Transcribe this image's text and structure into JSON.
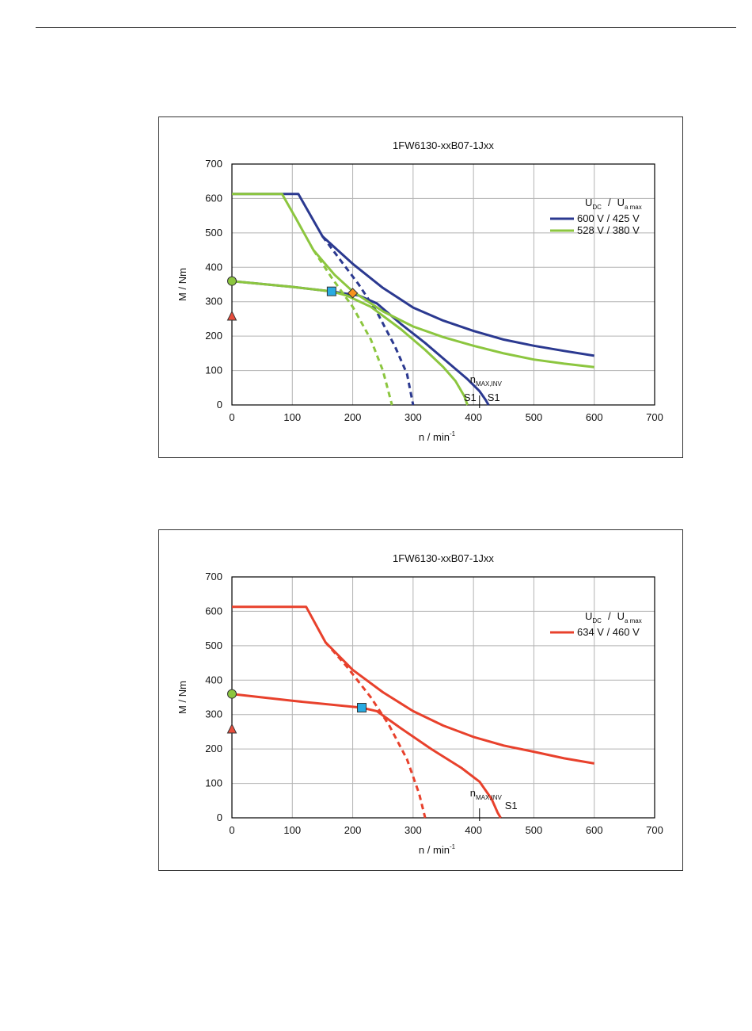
{
  "chart_data": [
    {
      "type": "line",
      "title": "1FW6130-xxB07-1Jxx",
      "xlabel": "n / min",
      "xlabel_sup": "-1",
      "ylabel": "M / Nm",
      "xlim": [
        0,
        700
      ],
      "ylim": [
        0,
        700
      ],
      "xticks": [
        "0",
        "100",
        "200",
        "300",
        "400",
        "500",
        "600",
        "700"
      ],
      "yticks": [
        "0",
        "100",
        "200",
        "300",
        "400",
        "500",
        "600",
        "700"
      ],
      "grid": true,
      "legend": {
        "placement": "right",
        "header_main1": "U",
        "header_sub1": "DC",
        "header_sep": "/",
        "header_main2": "U",
        "header_sub2": "a max",
        "entries": [
          "600 V / 425 V",
          "528 V / 380 V"
        ]
      },
      "colors": {
        "series1": "#2b3990",
        "series2": "#8cc63f"
      },
      "series": [
        {
          "name": "600 V / 425 V",
          "color": "#2b3990",
          "curves": [
            {
              "style": "solid",
              "points": [
                [
                  0,
                  613
                ],
                [
                  110,
                  613
                ],
                [
                  150,
                  490
                ],
                [
                  175,
                  450
                ],
                [
                  200,
                  410
                ],
                [
                  250,
                  340
                ],
                [
                  300,
                  283
                ],
                [
                  350,
                  245
                ],
                [
                  400,
                  215
                ],
                [
                  450,
                  190
                ],
                [
                  500,
                  172
                ],
                [
                  550,
                  157
                ],
                [
                  600,
                  143
                ]
              ]
            },
            {
              "style": "solid",
              "points": [
                [
                  0,
                  360
                ],
                [
                  100,
                  343
                ],
                [
                  165,
                  330
                ],
                [
                  190,
                  323
                ],
                [
                  210,
                  318
                ],
                [
                  240,
                  295
                ],
                [
                  280,
                  235
                ],
                [
                  320,
                  180
                ],
                [
                  360,
                  120
                ],
                [
                  390,
                  75
                ],
                [
                  410,
                  40
                ],
                [
                  420,
                  15
                ],
                [
                  425,
                  0
                ]
              ]
            },
            {
              "style": "dashed",
              "points": [
                [
                  150,
                  490
                ],
                [
                  180,
                  420
                ],
                [
                  210,
                  350
                ],
                [
                  240,
                  270
                ],
                [
                  270,
                  170
                ],
                [
                  290,
                  90
                ],
                [
                  300,
                  0
                ]
              ]
            }
          ]
        },
        {
          "name": "528 V / 380 V",
          "color": "#8cc63f",
          "curves": [
            {
              "style": "solid",
              "points": [
                [
                  0,
                  613
                ],
                [
                  83,
                  613
                ],
                [
                  105,
                  545
                ],
                [
                  135,
                  450
                ],
                [
                  170,
                  378
                ],
                [
                  200,
                  330
                ],
                [
                  250,
                  272
                ],
                [
                  300,
                  228
                ],
                [
                  350,
                  197
                ],
                [
                  400,
                  172
                ],
                [
                  450,
                  150
                ],
                [
                  500,
                  132
                ],
                [
                  550,
                  120
                ],
                [
                  600,
                  110
                ]
              ]
            },
            {
              "style": "solid",
              "points": [
                [
                  0,
                  360
                ],
                [
                  100,
                  343
                ],
                [
                  165,
                  330
                ],
                [
                  190,
                  318
                ],
                [
                  230,
                  285
                ],
                [
                  280,
                  220
                ],
                [
                  320,
                  160
                ],
                [
                  350,
                  110
                ],
                [
                  370,
                  70
                ],
                [
                  385,
                  25
                ],
                [
                  390,
                  0
                ]
              ]
            },
            {
              "style": "dashed",
              "points": [
                [
                  135,
                  450
                ],
                [
                  165,
                  370
                ],
                [
                  200,
                  285
                ],
                [
                  230,
                  190
                ],
                [
                  250,
                  100
                ],
                [
                  265,
                  0
                ]
              ]
            }
          ]
        }
      ],
      "markers": [
        {
          "shape": "circle",
          "color": "#8cc63f",
          "x": 0,
          "y": 360
        },
        {
          "shape": "triangle",
          "color": "#e84d3c",
          "x": 0,
          "y": 258
        },
        {
          "shape": "square",
          "color": "#29abe2",
          "x": 165,
          "y": 330
        },
        {
          "shape": "diamond",
          "color": "#f7931e",
          "x": 200,
          "y": 325
        }
      ],
      "annotations": {
        "nmax_main": "n",
        "nmax_sub": "MAX,INV",
        "nmax_x": 410,
        "s1_left": "S1",
        "s1_right": "S1"
      }
    },
    {
      "type": "line",
      "title": "1FW6130-xxB07-1Jxx",
      "xlabel": "n / min",
      "xlabel_sup": "-1",
      "ylabel": "M / Nm",
      "xlim": [
        0,
        700
      ],
      "ylim": [
        0,
        700
      ],
      "xticks": [
        "0",
        "100",
        "200",
        "300",
        "400",
        "500",
        "600",
        "700"
      ],
      "yticks": [
        "0",
        "100",
        "200",
        "300",
        "400",
        "500",
        "600",
        "700"
      ],
      "grid": true,
      "legend": {
        "placement": "right",
        "header_main1": "U",
        "header_sub1": "DC",
        "header_sep": "/",
        "header_main2": "U",
        "header_sub2": "a max",
        "entries": [
          "634 V / 460 V"
        ]
      },
      "colors": {
        "series1": "#e8412c"
      },
      "series": [
        {
          "name": "634 V / 460 V",
          "color": "#e8412c",
          "curves": [
            {
              "style": "solid",
              "points": [
                [
                  0,
                  613
                ],
                [
                  123,
                  613
                ],
                [
                  155,
                  510
                ],
                [
                  200,
                  430
                ],
                [
                  250,
                  365
                ],
                [
                  300,
                  310
                ],
                [
                  350,
                  268
                ],
                [
                  400,
                  235
                ],
                [
                  450,
                  210
                ],
                [
                  500,
                  192
                ],
                [
                  550,
                  173
                ],
                [
                  600,
                  158
                ]
              ]
            },
            {
              "style": "solid",
              "points": [
                [
                  0,
                  360
                ],
                [
                  100,
                  340
                ],
                [
                  215,
                  320
                ],
                [
                  240,
                  310
                ],
                [
                  280,
                  260
                ],
                [
                  330,
                  200
                ],
                [
                  380,
                  145
                ],
                [
                  410,
                  105
                ],
                [
                  430,
                  55
                ],
                [
                  440,
                  15
                ],
                [
                  445,
                  0
                ]
              ]
            },
            {
              "style": "dashed",
              "points": [
                [
                  155,
                  510
                ],
                [
                  190,
                  440
                ],
                [
                  230,
                  350
                ],
                [
                  260,
                  270
                ],
                [
                  290,
                  170
                ],
                [
                  310,
                  70
                ],
                [
                  320,
                  0
                ]
              ]
            }
          ]
        }
      ],
      "markers": [
        {
          "shape": "circle",
          "color": "#8cc63f",
          "x": 0,
          "y": 360
        },
        {
          "shape": "triangle",
          "color": "#e84d3c",
          "x": 0,
          "y": 258
        },
        {
          "shape": "square",
          "color": "#29abe2",
          "x": 215,
          "y": 320
        }
      ],
      "annotations": {
        "nmax_main": "n",
        "nmax_sub": "MAX,INV",
        "nmax_x": 410,
        "s1_right": "S1"
      }
    }
  ]
}
